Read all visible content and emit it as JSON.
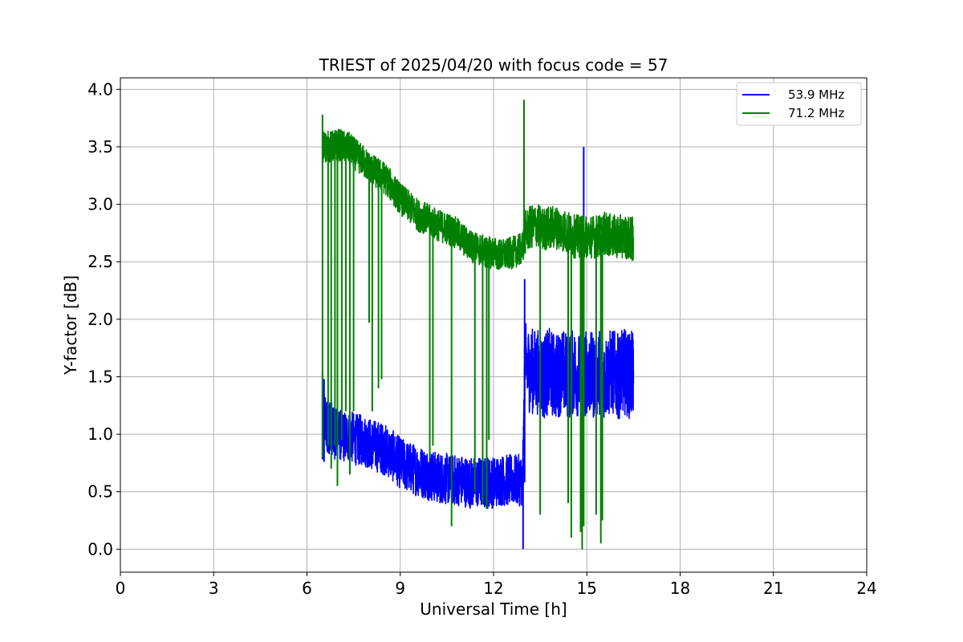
{
  "chart_data": {
    "type": "line",
    "title": "TRIEST of 2025/04/20 with focus code = 57",
    "xlabel": "Universal Time [h]",
    "ylabel": "Y-factor [dB]",
    "xlim": [
      0,
      24
    ],
    "ylim": [
      -0.2,
      4.1
    ],
    "xticks": [
      0,
      3,
      6,
      9,
      12,
      15,
      18,
      21,
      24
    ],
    "yticks": [
      0.0,
      0.5,
      1.0,
      1.5,
      2.0,
      2.5,
      3.0,
      3.5,
      4.0
    ],
    "xtick_labels": [
      "0",
      "3",
      "6",
      "9",
      "12",
      "15",
      "18",
      "21",
      "24"
    ],
    "ytick_labels": [
      "0.0",
      "0.5",
      "1.0",
      "1.5",
      "2.0",
      "2.5",
      "3.0",
      "3.5",
      "4.0"
    ],
    "grid": true,
    "legend_position": "top-right",
    "series": [
      {
        "name": "53.9 MHz",
        "color": "#0000ff",
        "x": [
          6.5,
          6.6,
          6.7,
          6.8,
          6.9,
          7.0,
          7.2,
          7.4,
          7.6,
          7.8,
          8.0,
          8.2,
          8.4,
          8.6,
          8.8,
          9.0,
          9.2,
          9.4,
          9.6,
          9.8,
          10.0,
          10.2,
          10.4,
          10.6,
          10.8,
          11.0,
          11.2,
          11.4,
          11.6,
          11.8,
          12.0,
          12.2,
          12.4,
          12.6,
          12.8,
          12.95,
          13.0,
          13.2,
          13.4,
          13.6,
          13.8,
          14.0,
          14.2,
          14.4,
          14.6,
          14.8,
          14.9,
          15.0,
          15.2,
          15.4,
          15.6,
          15.8,
          16.0,
          16.2,
          16.4,
          16.5
        ],
        "y": [
          1.15,
          1.1,
          1.05,
          1.05,
          1.0,
          1.0,
          0.98,
          0.98,
          0.95,
          0.95,
          0.92,
          0.9,
          0.88,
          0.85,
          0.8,
          0.75,
          0.72,
          0.7,
          0.68,
          0.66,
          0.64,
          0.62,
          0.62,
          0.6,
          0.6,
          0.6,
          0.58,
          0.58,
          0.58,
          0.58,
          0.58,
          0.6,
          0.6,
          0.6,
          0.6,
          0.6,
          1.6,
          1.55,
          1.55,
          1.5,
          1.55,
          1.5,
          1.55,
          1.5,
          1.55,
          1.5,
          1.5,
          1.55,
          1.5,
          1.55,
          1.5,
          1.55,
          1.5,
          1.55,
          1.5,
          1.55
        ],
        "spikes": [
          {
            "x": 6.5,
            "low": 0.78,
            "high": 1.52
          },
          {
            "x": 6.55,
            "low": 0.76,
            "high": 1.48
          },
          {
            "x": 11.8,
            "low": 0.35,
            "high": 0.8
          },
          {
            "x": 12.95,
            "low": 0.0,
            "high": 0.95
          },
          {
            "x": 13.0,
            "low": 0.58,
            "high": 2.35
          },
          {
            "x": 14.9,
            "low": 1.2,
            "high": 3.5
          }
        ]
      },
      {
        "name": "71.2 MHz",
        "color": "#008000",
        "x": [
          6.5,
          6.6,
          6.8,
          7.0,
          7.2,
          7.4,
          7.6,
          7.8,
          8.0,
          8.2,
          8.4,
          8.6,
          8.8,
          9.0,
          9.2,
          9.4,
          9.6,
          9.8,
          10.0,
          10.2,
          10.4,
          10.6,
          10.8,
          11.0,
          11.2,
          11.4,
          11.6,
          11.8,
          12.0,
          12.2,
          12.4,
          12.6,
          12.8,
          12.95,
          13.0,
          13.2,
          13.4,
          13.6,
          13.8,
          14.0,
          14.2,
          14.4,
          14.6,
          14.8,
          15.0,
          15.2,
          15.4,
          15.6,
          15.8,
          16.0,
          16.2,
          16.4,
          16.5
        ],
        "y": [
          3.5,
          3.5,
          3.5,
          3.52,
          3.5,
          3.48,
          3.42,
          3.38,
          3.32,
          3.28,
          3.25,
          3.2,
          3.12,
          3.05,
          3.0,
          2.95,
          2.9,
          2.88,
          2.85,
          2.82,
          2.8,
          2.78,
          2.75,
          2.7,
          2.65,
          2.62,
          2.6,
          2.58,
          2.58,
          2.56,
          2.56,
          2.58,
          2.6,
          2.62,
          2.75,
          2.8,
          2.82,
          2.78,
          2.8,
          2.8,
          2.78,
          2.75,
          2.72,
          2.72,
          2.72,
          2.72,
          2.72,
          2.75,
          2.72,
          2.72,
          2.72,
          2.7,
          2.7
        ],
        "spikes": [
          {
            "x": 6.5,
            "low": 0.8,
            "high": 3.78
          },
          {
            "x": 6.68,
            "low": 0.9,
            "high": 3.4
          },
          {
            "x": 6.78,
            "low": 0.7,
            "high": 3.5
          },
          {
            "x": 6.9,
            "low": 0.9,
            "high": 3.5
          },
          {
            "x": 6.98,
            "low": 0.55,
            "high": 3.5
          },
          {
            "x": 7.12,
            "low": 0.95,
            "high": 3.5
          },
          {
            "x": 7.25,
            "low": 1.2,
            "high": 3.5
          },
          {
            "x": 7.38,
            "low": 0.65,
            "high": 3.5
          },
          {
            "x": 7.5,
            "low": 1.2,
            "high": 3.45
          },
          {
            "x": 8.0,
            "low": 1.97,
            "high": 3.3
          },
          {
            "x": 8.1,
            "low": 1.2,
            "high": 3.3
          },
          {
            "x": 8.3,
            "low": 1.4,
            "high": 3.28
          },
          {
            "x": 8.4,
            "low": 1.48,
            "high": 3.25
          },
          {
            "x": 9.95,
            "low": 0.8,
            "high": 2.85
          },
          {
            "x": 10.05,
            "low": 0.9,
            "high": 2.85
          },
          {
            "x": 10.65,
            "low": 0.2,
            "high": 2.78
          },
          {
            "x": 11.4,
            "low": 0.5,
            "high": 2.65
          },
          {
            "x": 11.65,
            "low": 0.4,
            "high": 2.6
          },
          {
            "x": 11.78,
            "low": 0.35,
            "high": 2.6
          },
          {
            "x": 11.85,
            "low": 0.95,
            "high": 2.6
          },
          {
            "x": 12.98,
            "low": 2.7,
            "high": 3.91
          },
          {
            "x": 13.5,
            "low": 0.3,
            "high": 2.82
          },
          {
            "x": 14.4,
            "low": 0.4,
            "high": 2.75
          },
          {
            "x": 14.5,
            "low": 0.1,
            "high": 2.75
          },
          {
            "x": 14.8,
            "low": 0.15,
            "high": 2.72
          },
          {
            "x": 14.85,
            "low": 0.0,
            "high": 2.72
          },
          {
            "x": 14.9,
            "low": 0.2,
            "high": 2.72
          },
          {
            "x": 15.3,
            "low": 0.3,
            "high": 2.72
          },
          {
            "x": 15.45,
            "low": 0.05,
            "high": 2.75
          },
          {
            "x": 15.5,
            "low": 0.25,
            "high": 2.75
          }
        ]
      }
    ]
  }
}
